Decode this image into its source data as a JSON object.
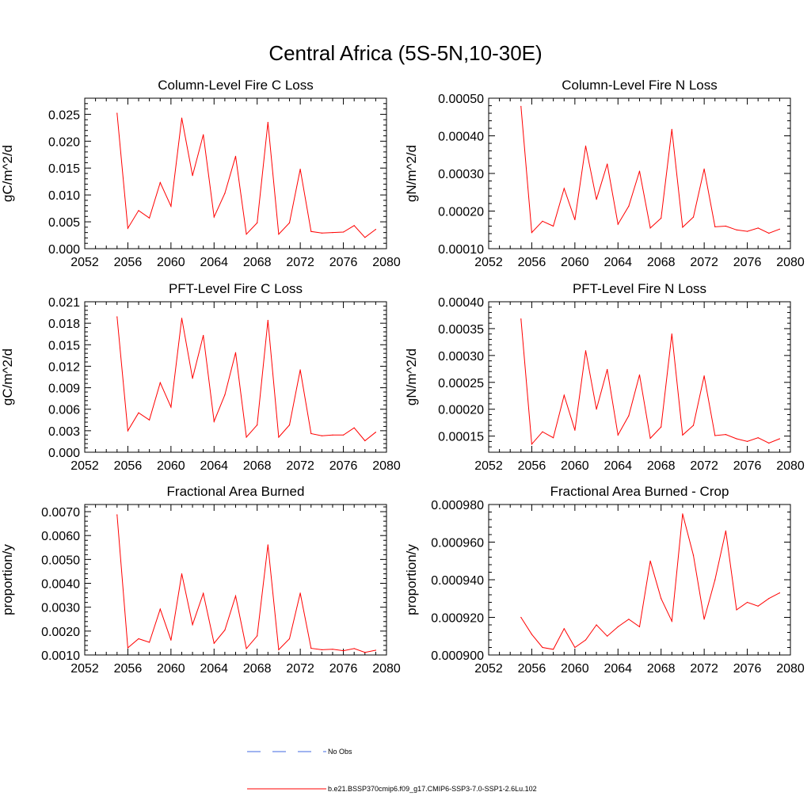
{
  "figure": {
    "title": "Central Africa (5S-5N,10-30E)",
    "line_color": "#ff0000",
    "obs_color": "#4169e1"
  },
  "legend": {
    "obs_label": "No Obs",
    "model_label": "b.e21.BSSP370cmip6.f09_g17.CMIP6-SSP3-7.0-SSP1-2.6Lu.102"
  },
  "chart_data": [
    {
      "type": "line",
      "title": "Column-Level Fire C Loss",
      "ylabel": "gC/m^2/d",
      "xlim": [
        2052,
        2080
      ],
      "xticks": [
        2052,
        2056,
        2060,
        2064,
        2068,
        2072,
        2076,
        2080
      ],
      "ylim": [
        0.0,
        0.028
      ],
      "yticks": [
        "0.000",
        "0.005",
        "0.010",
        "0.015",
        "0.020",
        "0.025"
      ],
      "x": [
        2055,
        2056,
        2057,
        2058,
        2059,
        2060,
        2061,
        2062,
        2063,
        2064,
        2065,
        2066,
        2067,
        2068,
        2069,
        2070,
        2071,
        2072,
        2073,
        2074,
        2075,
        2076,
        2077,
        2078,
        2079
      ],
      "y": [
        0.0252,
        0.0038,
        0.0071,
        0.0057,
        0.0123,
        0.0079,
        0.0243,
        0.0136,
        0.0212,
        0.0059,
        0.0103,
        0.0172,
        0.0027,
        0.0048,
        0.0235,
        0.0027,
        0.0048,
        0.0148,
        0.0032,
        0.0029,
        0.003,
        0.0031,
        0.0043,
        0.0021,
        0.0036
      ]
    },
    {
      "type": "line",
      "title": "Column-Level Fire N Loss",
      "ylabel": "gN/m^2/d",
      "xlim": [
        2052,
        2080
      ],
      "xticks": [
        2052,
        2056,
        2060,
        2064,
        2068,
        2072,
        2076,
        2080
      ],
      "ylim": [
        0.0001,
        0.0005
      ],
      "yticks": [
        "0.00010",
        "0.00020",
        "0.00030",
        "0.00040",
        "0.00050"
      ],
      "x": [
        2055,
        2056,
        2057,
        2058,
        2059,
        2060,
        2061,
        2062,
        2063,
        2064,
        2065,
        2066,
        2067,
        2068,
        2069,
        2070,
        2071,
        2072,
        2073,
        2074,
        2075,
        2076,
        2077,
        2078,
        2079
      ],
      "y": [
        0.000478,
        0.000143,
        0.000173,
        0.00016,
        0.00026,
        0.000177,
        0.000373,
        0.000231,
        0.000325,
        0.000165,
        0.000213,
        0.000306,
        0.000155,
        0.000181,
        0.000417,
        0.000157,
        0.000184,
        0.000312,
        0.000158,
        0.00016,
        0.00015,
        0.000146,
        0.000155,
        0.000141,
        0.000152
      ]
    },
    {
      "type": "line",
      "title": "PFT-Level Fire C Loss",
      "ylabel": "gC/m^2/d",
      "xlim": [
        2052,
        2080
      ],
      "xticks": [
        2052,
        2056,
        2060,
        2064,
        2068,
        2072,
        2076,
        2080
      ],
      "ylim": [
        0.0,
        0.021
      ],
      "yticks": [
        "0.000",
        "0.003",
        "0.006",
        "0.009",
        "0.012",
        "0.015",
        "0.018",
        "0.021"
      ],
      "x": [
        2055,
        2056,
        2057,
        2058,
        2059,
        2060,
        2061,
        2062,
        2063,
        2064,
        2065,
        2066,
        2067,
        2068,
        2069,
        2070,
        2071,
        2072,
        2073,
        2074,
        2075,
        2076,
        2077,
        2078,
        2079
      ],
      "y": [
        0.0189,
        0.003,
        0.0055,
        0.0045,
        0.0097,
        0.0063,
        0.0187,
        0.0103,
        0.0163,
        0.0043,
        0.008,
        0.0139,
        0.0021,
        0.0038,
        0.0184,
        0.0021,
        0.0038,
        0.0115,
        0.0026,
        0.0023,
        0.0024,
        0.0024,
        0.0034,
        0.0016,
        0.0028
      ]
    },
    {
      "type": "line",
      "title": "PFT-Level Fire N Loss",
      "ylabel": "gN/m^2/d",
      "xlim": [
        2052,
        2080
      ],
      "xticks": [
        2052,
        2056,
        2060,
        2064,
        2068,
        2072,
        2076,
        2080
      ],
      "ylim": [
        0.00012,
        0.0004
      ],
      "yticks": [
        "0.00015",
        "0.00020",
        "0.00025",
        "0.00030",
        "0.00035",
        "0.00040"
      ],
      "x": [
        2055,
        2056,
        2057,
        2058,
        2059,
        2060,
        2061,
        2062,
        2063,
        2064,
        2065,
        2066,
        2067,
        2068,
        2069,
        2070,
        2071,
        2072,
        2073,
        2074,
        2075,
        2076,
        2077,
        2078,
        2079
      ],
      "y": [
        0.000368,
        0.000135,
        0.000158,
        0.000147,
        0.000226,
        0.000161,
        0.000309,
        0.0002,
        0.000274,
        0.000152,
        0.000188,
        0.000264,
        0.000146,
        0.000167,
        0.00034,
        0.000152,
        0.00017,
        0.000262,
        0.000151,
        0.000153,
        0.000145,
        0.00014,
        0.000147,
        0.000137,
        0.000145
      ]
    },
    {
      "type": "line",
      "title": "Fractional Area Burned",
      "ylabel": "proportion/y",
      "xlim": [
        2052,
        2080
      ],
      "xticks": [
        2052,
        2056,
        2060,
        2064,
        2068,
        2072,
        2076,
        2080
      ],
      "ylim": [
        0.001,
        0.0073
      ],
      "yticks": [
        "0.0010",
        "0.0020",
        "0.0030",
        "0.0040",
        "0.0050",
        "0.0060",
        "0.0070"
      ],
      "x": [
        2055,
        2056,
        2057,
        2058,
        2059,
        2060,
        2061,
        2062,
        2063,
        2064,
        2065,
        2066,
        2067,
        2068,
        2069,
        2070,
        2071,
        2072,
        2073,
        2074,
        2075,
        2076,
        2077,
        2078,
        2079
      ],
      "y": [
        0.00687,
        0.0013,
        0.00168,
        0.00153,
        0.00292,
        0.00162,
        0.0044,
        0.00227,
        0.00358,
        0.00149,
        0.00204,
        0.00347,
        0.00127,
        0.0018,
        0.00561,
        0.00122,
        0.00168,
        0.00359,
        0.00128,
        0.00122,
        0.00124,
        0.00118,
        0.00127,
        0.00111,
        0.0012
      ]
    },
    {
      "type": "line",
      "title": "Fractional Area Burned - Crop",
      "ylabel": "proportion/y",
      "xlim": [
        2052,
        2080
      ],
      "xticks": [
        2052,
        2056,
        2060,
        2064,
        2068,
        2072,
        2076,
        2080
      ],
      "ylim": [
        0.0009,
        0.00098
      ],
      "yticks": [
        "0.000900",
        "0.000920",
        "0.000940",
        "0.000960",
        "0.000980"
      ],
      "x": [
        2055,
        2056,
        2057,
        2058,
        2059,
        2060,
        2061,
        2062,
        2063,
        2064,
        2065,
        2066,
        2067,
        2068,
        2069,
        2070,
        2071,
        2072,
        2073,
        2074,
        2075,
        2076,
        2077,
        2078,
        2079
      ],
      "y": [
        0.00092,
        0.000911,
        0.000904,
        0.000903,
        0.000914,
        0.000904,
        0.000908,
        0.000916,
        0.00091,
        0.000915,
        0.000919,
        0.000915,
        0.00095,
        0.00093,
        0.000918,
        0.000975,
        0.000953,
        0.000919,
        0.00094,
        0.000966,
        0.000924,
        0.000928,
        0.000926,
        0.00093,
        0.000933
      ]
    }
  ]
}
